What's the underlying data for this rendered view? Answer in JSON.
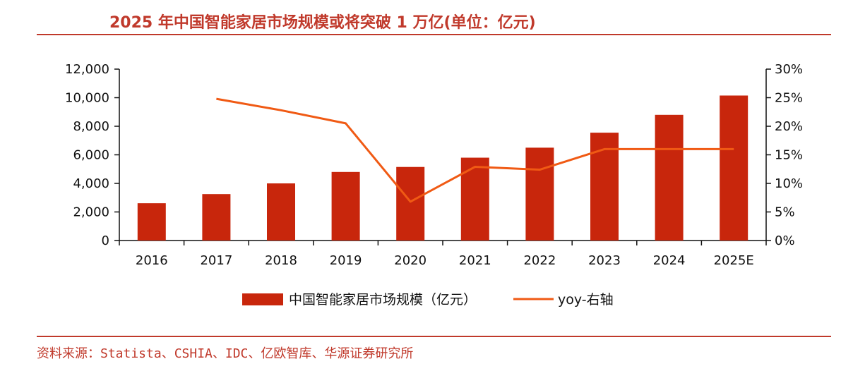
{
  "title": "2025 年中国智能家居市场规模或将突破 1 万亿(单位：亿元)",
  "source": "资料来源：Statista、CSHIA、IDC、亿欧智库、华源证券研究所",
  "chart_data": {
    "type": "bar",
    "categories": [
      "2016",
      "2017",
      "2018",
      "2019",
      "2020",
      "2021",
      "2022",
      "2023",
      "2024",
      "2025E"
    ],
    "series": [
      {
        "name": "中国智能家居市场规模（亿元）",
        "type": "bar",
        "axis": "left",
        "color": "#c8260c",
        "values": [
          2610,
          3250,
          4000,
          4800,
          5150,
          5800,
          6500,
          7550,
          8800,
          10150
        ]
      },
      {
        "name": "yoy-右轴",
        "type": "line",
        "axis": "right",
        "color": "#f05a14",
        "values": [
          null,
          24.8,
          22.8,
          20.5,
          6.8,
          12.9,
          12.4,
          16.0,
          16.0,
          16.0
        ]
      }
    ],
    "y_left": {
      "min": 0,
      "max": 12000,
      "ticks": [
        "0",
        "2,000",
        "4,000",
        "6,000",
        "8,000",
        "10,000",
        "12,000"
      ]
    },
    "y_right": {
      "min": 0,
      "max": 30,
      "ticks": [
        "0%",
        "5%",
        "10%",
        "15%",
        "20%",
        "25%",
        "30%"
      ]
    },
    "legend_position": "bottom-center",
    "grid": false
  }
}
